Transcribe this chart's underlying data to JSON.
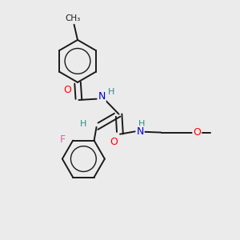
{
  "background_color": "#ebebeb",
  "bond_color": "#1a1a1a",
  "atom_colors": {
    "O": "#ff0000",
    "N": "#0000cd",
    "F": "#e060a0",
    "H": "#2e8b8b",
    "C": "#1a1a1a"
  },
  "figsize": [
    3.0,
    3.0
  ],
  "dpi": 100
}
